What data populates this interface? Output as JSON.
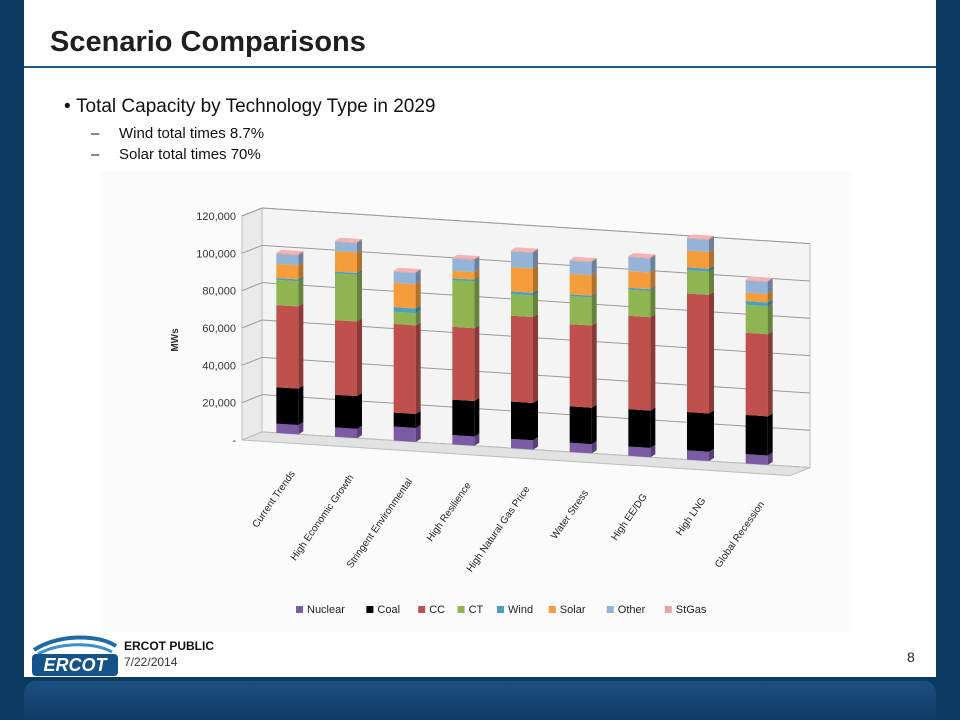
{
  "slide": {
    "title": "Scenario Comparisons",
    "bullet": "Total Capacity by Technology Type in 2029",
    "sub_bullets": [
      "Wind total times 8.7%",
      "Solar total times 70%"
    ],
    "footer_label": "ERCOT PUBLIC",
    "footer_date": "7/22/2014",
    "page_number": "8",
    "logo_text": "ERCOT"
  },
  "chart_data": {
    "type": "bar",
    "stacked": true,
    "three_d": true,
    "ylabel": "MWs",
    "ylim": [
      0,
      120000
    ],
    "yticks": [
      "-",
      "20,000",
      "40,000",
      "60,000",
      "80,000",
      "100,000",
      "120,000"
    ],
    "grid": true,
    "legend_position": "bottom",
    "categories": [
      "Current Trends",
      "High Economic Growth",
      "Stringent Environmental",
      "High Resilience",
      "High Natural Gas Price",
      "Water Stress",
      "High EE/DG",
      "High LNG",
      "Global Recession"
    ],
    "series": [
      {
        "name": "Nuclear",
        "color": "#7c5aa6",
        "values": [
          5000,
          5000,
          7500,
          5000,
          5000,
          5000,
          5000,
          5000,
          5000
        ]
      },
      {
        "name": "Coal",
        "color": "#000000",
        "values": [
          19500,
          17500,
          7500,
          19000,
          20000,
          19500,
          20000,
          20500,
          21000
        ]
      },
      {
        "name": "CC",
        "color": "#c0504d",
        "values": [
          44000,
          40000,
          47500,
          39000,
          46000,
          44000,
          50000,
          63500,
          44000
        ]
      },
      {
        "name": "CT",
        "color": "#8fb553",
        "values": [
          13500,
          25000,
          6500,
          25000,
          11500,
          15000,
          14000,
          12500,
          15000
        ]
      },
      {
        "name": "Wind",
        "color": "#4aa0bd",
        "values": [
          1000,
          1000,
          2500,
          1000,
          1500,
          1000,
          1000,
          1500,
          2000
        ]
      },
      {
        "name": "Solar",
        "color": "#f59d3d",
        "values": [
          7500,
          11000,
          13000,
          4000,
          13000,
          11000,
          9000,
          9000,
          4500
        ]
      },
      {
        "name": "Other",
        "color": "#95b3d7",
        "values": [
          5500,
          5000,
          6000,
          6500,
          8500,
          7000,
          7500,
          6500,
          6500
        ]
      },
      {
        "name": "StGas",
        "color": "#e6a5a3",
        "values": [
          500,
          500,
          500,
          500,
          500,
          500,
          500,
          500,
          500
        ]
      }
    ]
  }
}
